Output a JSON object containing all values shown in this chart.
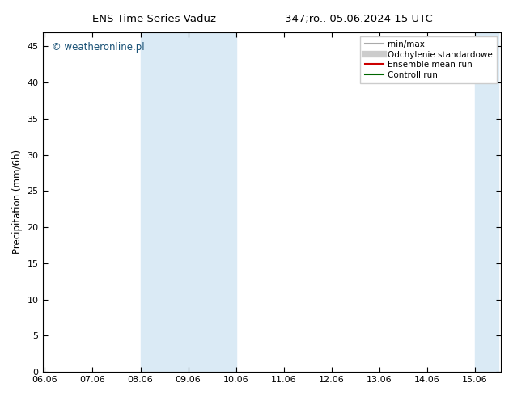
{
  "title_left": "ENS Time Series Vaduz",
  "title_right": "347;ro.. 05.06.2024 15 UTC",
  "ylabel": "Precipitation (mm/6h)",
  "xlabel": "",
  "ylim": [
    0,
    47
  ],
  "yticks": [
    0,
    5,
    10,
    15,
    20,
    25,
    30,
    35,
    40,
    45
  ],
  "xtick_labels": [
    "06.06",
    "07.06",
    "08.06",
    "09.06",
    "10.06",
    "11.06",
    "12.06",
    "13.06",
    "14.06",
    "15.06"
  ],
  "xtick_positions": [
    0,
    1,
    2,
    3,
    4,
    5,
    6,
    7,
    8,
    9
  ],
  "xlim": [
    -0.05,
    9.55
  ],
  "shaded_bands": [
    {
      "x_start": 2.0,
      "x_end": 2.5,
      "color": "#daeaf5"
    },
    {
      "x_start": 2.5,
      "x_end": 3.5,
      "color": "#daeaf5"
    },
    {
      "x_start": 3.5,
      "x_end": 4.0,
      "color": "#daeaf5"
    },
    {
      "x_start": 9.0,
      "x_end": 9.25,
      "color": "#daeaf5"
    },
    {
      "x_start": 9.25,
      "x_end": 9.5,
      "color": "#daeaf5"
    }
  ],
  "background_color": "#ffffff",
  "watermark_text": "© weatheronline.pl",
  "watermark_color": "#1a5276",
  "legend_items": [
    {
      "label": "min/max",
      "color": "#aaaaaa",
      "linestyle": "-",
      "linewidth": 1.5
    },
    {
      "label": "Odchylenie standardowe",
      "color": "#cccccc",
      "linestyle": "-",
      "linewidth": 6
    },
    {
      "label": "Ensemble mean run",
      "color": "#cc0000",
      "linestyle": "-",
      "linewidth": 1.5
    },
    {
      "label": "Controll run",
      "color": "#006600",
      "linestyle": "-",
      "linewidth": 1.5
    }
  ],
  "axis_linewidth": 0.8,
  "tick_direction": "in",
  "title_fontsize": 9.5,
  "label_fontsize": 8.5,
  "tick_fontsize": 8.0,
  "watermark_fontsize": 8.5,
  "legend_fontsize": 7.5
}
